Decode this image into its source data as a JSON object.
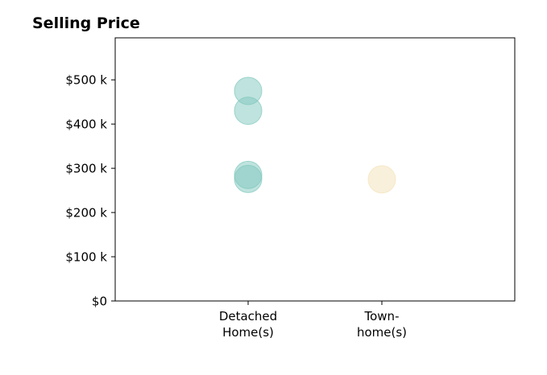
{
  "chart_data": {
    "type": "scatter",
    "title": "Selling Price",
    "xlabel": "",
    "ylabel": "",
    "categories": [
      "Detached\nHome(s)",
      "Town-\nhome(s)"
    ],
    "ylim": [
      0,
      595000
    ],
    "yticks": [
      0,
      100000,
      200000,
      300000,
      400000,
      500000
    ],
    "ytick_labels": [
      "$0",
      "$100 k",
      "$200 k",
      "$300 k",
      "$400 k",
      "$500 k"
    ],
    "grid": false,
    "series": [
      {
        "category": "Detached\nHome(s)",
        "color": "#7fc8bd",
        "values": [
          475000,
          430000,
          285000,
          276000
        ]
      },
      {
        "category": "Town-\nhome(s)",
        "color": "#f3e2b8",
        "values": [
          275000
        ]
      }
    ]
  }
}
